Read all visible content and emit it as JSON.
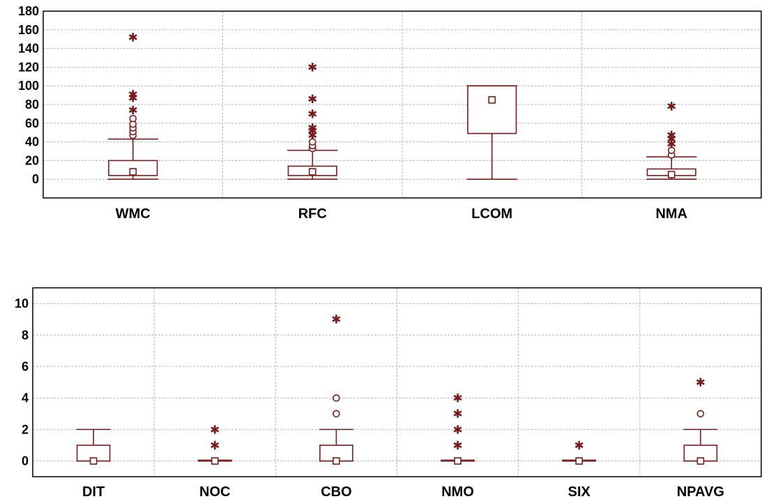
{
  "colors": {
    "box": "#7a1a1a",
    "grid": "#b4b4b4",
    "axis": "#000000",
    "background": "#ffffff"
  },
  "chart_data": [
    {
      "type": "boxplot",
      "title": "",
      "xlabel": "",
      "ylabel": "",
      "ylim": [
        -20,
        180
      ],
      "yticks": [
        0,
        20,
        40,
        60,
        80,
        100,
        120,
        140,
        160,
        180
      ],
      "grid": true,
      "categories": [
        "WMC",
        "RFC",
        "LCOM",
        "NMA"
      ],
      "boxes": [
        {
          "category": "WMC",
          "min": 0,
          "q1": 4,
          "median": 8,
          "q3": 20,
          "max": 43,
          "outliers": [
            47,
            51,
            55,
            59,
            65
          ],
          "extremes": [
            74,
            87,
            91,
            152
          ]
        },
        {
          "category": "RFC",
          "min": 0,
          "q1": 4,
          "median": 8,
          "q3": 14,
          "max": 31,
          "outliers": [
            33,
            36,
            40
          ],
          "extremes": [
            47,
            52,
            55,
            70,
            86,
            120
          ]
        },
        {
          "category": "LCOM",
          "min": 0,
          "q1": 49,
          "median": 85,
          "q3": 100,
          "max": 100,
          "outliers": [],
          "extremes": []
        },
        {
          "category": "NMA",
          "min": 0,
          "q1": 4,
          "median": 5,
          "q3": 11,
          "max": 24,
          "outliers": [
            26,
            31
          ],
          "extremes": [
            38,
            43,
            47,
            78
          ]
        }
      ]
    },
    {
      "type": "boxplot",
      "title": "",
      "xlabel": "",
      "ylabel": "",
      "ylim": [
        -1,
        11
      ],
      "yticks": [
        0,
        2,
        4,
        6,
        8,
        10
      ],
      "grid": true,
      "categories": [
        "DIT",
        "NOC",
        "CBO",
        "NMO",
        "SIX",
        "NPAVG"
      ],
      "boxes": [
        {
          "category": "DIT",
          "min": 0,
          "q1": 0,
          "median": 0,
          "q3": 1,
          "max": 2,
          "outliers": [],
          "extremes": []
        },
        {
          "category": "NOC",
          "min": 0,
          "q1": 0,
          "median": 0,
          "q3": 0.05,
          "max": 0.05,
          "outliers": [],
          "extremes": [
            1,
            2
          ]
        },
        {
          "category": "CBO",
          "min": 0,
          "q1": 0,
          "median": 0,
          "q3": 1,
          "max": 2,
          "outliers": [
            3,
            4
          ],
          "extremes": [
            9
          ]
        },
        {
          "category": "NMO",
          "min": 0,
          "q1": 0,
          "median": 0,
          "q3": 0.05,
          "max": 0.05,
          "outliers": [],
          "extremes": [
            1,
            2,
            3,
            4
          ]
        },
        {
          "category": "SIX",
          "min": 0,
          "q1": 0,
          "median": 0,
          "q3": 0.05,
          "max": 0.05,
          "outliers": [],
          "extremes": [
            1
          ]
        },
        {
          "category": "NPAVG",
          "min": 0,
          "q1": 0,
          "median": 0,
          "q3": 1,
          "max": 2,
          "outliers": [
            3
          ],
          "extremes": [
            5
          ]
        }
      ]
    }
  ]
}
